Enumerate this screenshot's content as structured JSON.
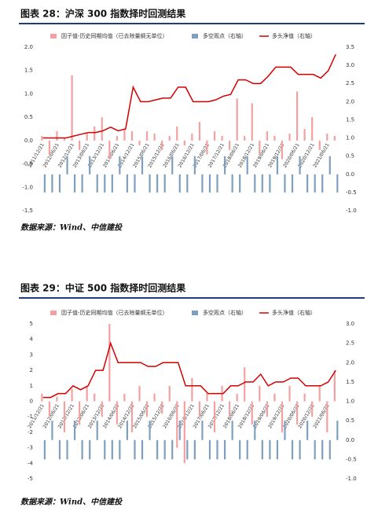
{
  "chart_data": [
    {
      "type": "bar-line",
      "title": "图表 28：沪深 300 指数择时回测结果",
      "source": "数据来源：Wind、中信建投",
      "categories": [
        "2011/12/21",
        null,
        "2012/06/21",
        null,
        "2012/12/21",
        null,
        "2013/06/21",
        null,
        "2013/12/21",
        null,
        "2014/06/21",
        null,
        "2014/12/21",
        null,
        "2015/06/21",
        null,
        "2015/12/21",
        null,
        "2016/06/21",
        null,
        "2016/12/21",
        null,
        "2017/06/21",
        null,
        "2017/12/21",
        null,
        "2018/06/21",
        null,
        "2018/12/21",
        null,
        "2019/06/21",
        null,
        "2019/12/21",
        null,
        "2020/06/21",
        null,
        "2020/12/21",
        null,
        "2021/06/21",
        null
      ],
      "series": [
        {
          "name": "因子值-历史同期均值（已去除量纲无单位）",
          "color": "#f4a0a0",
          "values": [
            0.1,
            -0.3,
            0.2,
            0.05,
            1.4,
            -0.2,
            0.15,
            0.3,
            0.5,
            -0.4,
            0.1,
            0.25,
            0.2,
            -0.1,
            0.2,
            0.15,
            -0.2,
            0.1,
            0.3,
            -0.1,
            0.15,
            0.4,
            -0.3,
            0.2,
            0.1,
            -0.2,
            0.9,
            0.1,
            0.8,
            -0.3,
            0.2,
            0.1,
            -0.4,
            0.15,
            1.05,
            0.25,
            0.5,
            -0.2,
            0.15,
            0.1
          ]
        },
        {
          "name": "多空观点（右轴）",
          "color": "#7f9fbf",
          "axis": "y2",
          "values": [
            -0.5,
            -0.5,
            -0.5,
            0.5,
            -0.5,
            -0.5,
            0.5,
            -0.5,
            -0.5,
            -0.5,
            0.5,
            -0.5,
            -0.5,
            0.5,
            -0.5,
            -0.5,
            -0.5,
            0.5,
            -0.5,
            -0.5,
            0.5,
            -0.5,
            -0.5,
            -0.5,
            0.5,
            -0.5,
            -0.5,
            0.5,
            -0.5,
            -0.5,
            -0.5,
            0.5,
            -0.5,
            -0.5,
            0.5,
            -0.5,
            -0.5,
            -0.5,
            0.5,
            -0.5
          ]
        },
        {
          "name": "多头净值（右轴）",
          "color": "#d40000",
          "axis": "y2",
          "line": true,
          "values": [
            1.0,
            1.0,
            1.0,
            1.0,
            1.05,
            1.1,
            1.15,
            1.15,
            1.2,
            1.3,
            1.2,
            1.25,
            2.4,
            2.0,
            2.0,
            2.05,
            2.1,
            2.1,
            2.4,
            2.4,
            2.0,
            2.0,
            2.0,
            2.05,
            2.15,
            2.2,
            2.6,
            2.6,
            2.5,
            2.5,
            2.7,
            2.95,
            2.95,
            2.95,
            2.75,
            2.75,
            2.75,
            2.65,
            2.85,
            3.3
          ]
        }
      ],
      "ylim": [
        -1.5,
        2.0
      ],
      "yticks": [
        {
          "value": 2.0,
          "label": "2.0"
        },
        1.5,
        {
          "value": 1.0,
          "label": "1.0"
        },
        0.5,
        {
          "value": 0,
          "label": "0.0"
        },
        -0.5,
        {
          "value": -1.0,
          "label": "-1.0"
        },
        -1.5
      ],
      "y2lim": [
        -1.0,
        3.5
      ],
      "y2ticks": [
        3.5,
        {
          "value": 3.0,
          "label": "3.0"
        },
        2.5,
        {
          "value": 2.0,
          "label": "2.0"
        },
        1.5,
        {
          "value": 1.0,
          "label": "1.0"
        },
        0.5,
        {
          "value": 0,
          "label": "0.0"
        },
        -0.5,
        {
          "value": -1.0,
          "label": "-1.0"
        }
      ]
    },
    {
      "type": "bar-line",
      "title": "图表 29：中证 500 指数择时回测结果",
      "source": "数据来源：Wind、中信建投",
      "categories": [
        "2011/12/21",
        null,
        "2012/06/21",
        null,
        "2012/12/21",
        null,
        "2013/06/21",
        null,
        "2013/12/21",
        null,
        "2014/06/21",
        null,
        "2014/12/21",
        null,
        "2015/06/21",
        null,
        "2015/12/21",
        null,
        "2016/06/21",
        null,
        "2016/12/21",
        null,
        "2017/06/21",
        null,
        "2017/12/21",
        null,
        "2018/06/21",
        null,
        "2018/12/21",
        null,
        "2019/06/21",
        null,
        "2019/12/21",
        null,
        "2020/06/21",
        null,
        "2020/12/21",
        null,
        "2021/06/21",
        null
      ],
      "series": [
        {
          "name": "因子值-历史同期均值（已去除量纲无单位）",
          "color": "#f4a0a0",
          "values": [
            0.5,
            -1,
            0.3,
            -2,
            0.8,
            -1.5,
            1,
            0.5,
            -1,
            5,
            -1.5,
            0.5,
            -2,
            1,
            -1,
            0.5,
            -0.8,
            1,
            -3,
            -4,
            1.5,
            -1,
            0.5,
            -2,
            1,
            -1,
            0.5,
            2.2,
            -1.5,
            1,
            -1,
            0.5,
            -2,
            1,
            -1.5,
            0.5,
            -1,
            1,
            -2,
            2
          ]
        },
        {
          "name": "多空观点（右轴）",
          "color": "#7f9fbf",
          "axis": "y2",
          "values": [
            -0.5,
            0.5,
            -0.5,
            -0.5,
            0.5,
            -0.5,
            -0.5,
            0.5,
            -0.5,
            -0.5,
            -0.5,
            0.5,
            -0.5,
            -0.5,
            0.5,
            -0.5,
            -0.5,
            -0.5,
            0.5,
            -0.5,
            -0.5,
            0.5,
            -0.5,
            -0.5,
            -0.5,
            0.5,
            -0.5,
            -0.5,
            0.5,
            -0.5,
            -0.5,
            -0.5,
            0.5,
            -0.5,
            -0.5,
            0.5,
            -0.5,
            -0.5,
            -0.5,
            0.5
          ]
        },
        {
          "name": "多头净值（右轴）",
          "color": "#d40000",
          "axis": "y2",
          "line": true,
          "values": [
            1.1,
            1.1,
            1.2,
            1.2,
            1.4,
            1.3,
            1.4,
            1.8,
            1.8,
            2.5,
            2.0,
            2.0,
            2.0,
            2.0,
            1.9,
            1.9,
            2.0,
            2.0,
            2.0,
            1.4,
            1.4,
            1.4,
            1.2,
            1.2,
            1.2,
            1.4,
            1.4,
            1.5,
            1.5,
            1.7,
            1.4,
            1.5,
            1.5,
            1.6,
            1.6,
            1.4,
            1.4,
            1.4,
            1.5,
            1.8
          ]
        }
      ],
      "ylim": [
        -5,
        5
      ],
      "yticks": [
        5,
        4,
        3,
        2,
        1,
        0,
        -1,
        -2,
        -3,
        -4,
        -5
      ],
      "y2lim": [
        -1.0,
        3.0
      ],
      "y2ticks": [
        {
          "value": 3.0,
          "label": "3.0"
        },
        2.5,
        {
          "value": 2.0,
          "label": "2.0"
        },
        1.5,
        {
          "value": 1.0,
          "label": "1.0"
        },
        0.5,
        {
          "value": 0,
          "label": "0.0"
        },
        -0.5,
        {
          "value": -1.0,
          "label": "-1.0"
        }
      ]
    }
  ]
}
